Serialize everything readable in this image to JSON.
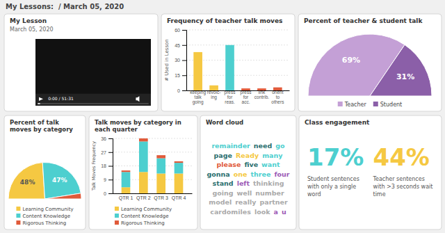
{
  "title": "My Lessons:  / March 05, 2020",
  "chart_data": [
    {
      "type": "video",
      "title": "My Lesson",
      "subtitle": "March 05, 2020",
      "annotations": [
        "0:00 / 51:31"
      ]
    },
    {
      "type": "bar",
      "title": "Frequency of teacher talk moves",
      "categories": [
        "keeping\ntalk\ngoing",
        "revoic-\ning",
        "press\nfor\nreas.",
        "press\nfor\nacc.",
        "link\ncontrib.",
        "orient\nto\nothers"
      ],
      "values": [
        38,
        5,
        45,
        2,
        2,
        3
      ],
      "colors": [
        "#f5c842",
        "#f5c842",
        "#4dcfcf",
        "#e05a3a",
        "#e05a3a",
        "#e05a3a"
      ],
      "ylabel": "# Used in Lesson",
      "ylim": [
        0,
        60
      ],
      "yticks": [
        0,
        15,
        30,
        45,
        60
      ],
      "grid": true
    },
    {
      "type": "pie",
      "title": "Percent of teacher & student talk",
      "categories": [
        "Teacher",
        "Student"
      ],
      "values": [
        69,
        31
      ],
      "value_labels": [
        "69%",
        "31%"
      ],
      "colors": [
        "#c4a0d6",
        "#8b5fa8"
      ],
      "legend": "bottom"
    },
    {
      "type": "pie",
      "title": "Percent of talk moves by category",
      "categories": [
        "Learning Community",
        "Content Knowledge",
        "Rigorous Thinking"
      ],
      "values": [
        48,
        47,
        5
      ],
      "value_labels": [
        "48%",
        "47%",
        null
      ],
      "colors": [
        "#f5c842",
        "#4dcfcf",
        "#e05a3a"
      ],
      "legend": "bottom"
    },
    {
      "type": "bar",
      "stacked": true,
      "title": "Talk moves by category in each quarter",
      "categories": [
        "QTR 1",
        "QTR 2",
        "QTR 3",
        "QTR 4"
      ],
      "series": [
        {
          "name": "Learning Community",
          "color": "#f5c842",
          "values": [
            4,
            14,
            13,
            13
          ]
        },
        {
          "name": "Content Knowledge",
          "color": "#4dcfcf",
          "values": [
            10,
            20,
            10,
            7
          ]
        },
        {
          "name": "Rigorous Thinking",
          "color": "#e05a3a",
          "values": [
            1,
            2,
            2,
            1
          ]
        }
      ],
      "ylabel": "Talk Moves Frequency",
      "ylim": [
        0,
        36
      ],
      "yticks": [
        0,
        9,
        18,
        27,
        36
      ],
      "grid": true,
      "legend": "bottom"
    },
    {
      "type": "wordcloud",
      "title": "Word cloud",
      "categories": [
        "remainder",
        "need",
        "go",
        "page",
        "Ready",
        "many",
        "please",
        "five",
        "want",
        "gonna",
        "one",
        "three",
        "four",
        "stand",
        "left",
        "thinking",
        "going",
        "well",
        "number",
        "model",
        "really",
        "partner",
        "cardomiles",
        "look",
        "a",
        "u"
      ],
      "colors": [
        "#4dcfcf",
        "#2a6e6e",
        "#4dcfcf",
        "#2a6e6e",
        "#f5c842",
        "#4dcfcf",
        "#e05a3a",
        "#2a6e6e",
        "#4dcfcf",
        "#2a6e6e",
        "#f5c842",
        "#4dcfcf",
        "#9b59b6",
        "#2a6e6e",
        "#9b59b6",
        "#aaaaaa",
        "#aaaaaa",
        "#aaaaaa",
        "#aaaaaa",
        "#aaaaaa",
        "#aaaaaa",
        "#aaaaaa",
        "#aaaaaa",
        "#aaaaaa",
        "#9b59b6",
        "#9b59b6"
      ]
    },
    {
      "type": "stat",
      "title": "Class engagement",
      "categories": [
        "Student sentences\nwith only a single\nword",
        "Teacher sentences\nwith >3 seconds wait\ntime"
      ],
      "values": [
        17,
        44
      ],
      "value_labels": [
        "17%",
        "44%"
      ],
      "colors": [
        "#4dcfcf",
        "#f5c842"
      ]
    }
  ]
}
